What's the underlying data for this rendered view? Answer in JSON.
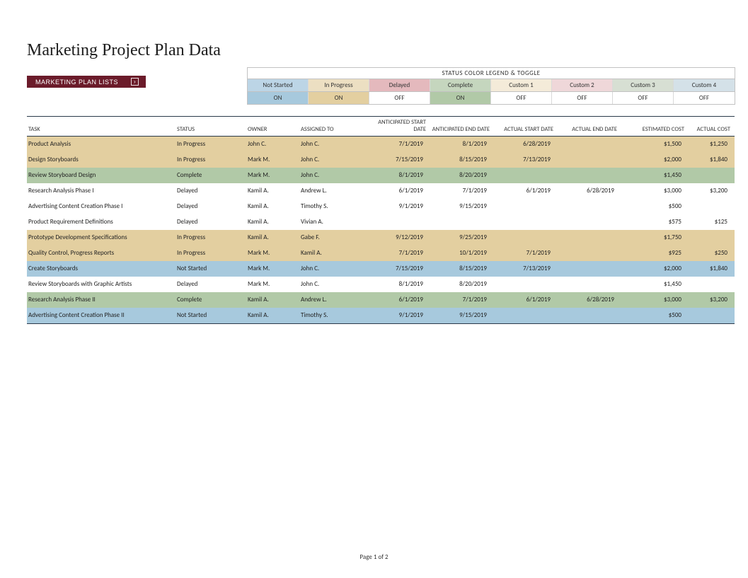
{
  "title": "Marketing Project Plan Data",
  "lists_button": "MARKETING PLAN LISTS",
  "legend_title": "STATUS COLOR LEGEND & TOGGLE",
  "legend": [
    {
      "label": "Not Started",
      "color": "#bcd5e6",
      "toggle": "ON",
      "toggle_bg": "#a7c9dd"
    },
    {
      "label": "In Progress",
      "color": "#ecdfc2",
      "toggle": "ON",
      "toggle_bg": "#e3cfa0"
    },
    {
      "label": "Delayed",
      "color": "#e4b9bd",
      "toggle": "OFF",
      "toggle_bg": "#ffffff"
    },
    {
      "label": "Complete",
      "color": "#c5d6be",
      "toggle": "ON",
      "toggle_bg": "#b1c9a7"
    },
    {
      "label": "Custom 1",
      "color": "#f4ebd9",
      "toggle": "OFF",
      "toggle_bg": "#ffffff"
    },
    {
      "label": "Custom 2",
      "color": "#efd7d9",
      "toggle": "OFF",
      "toggle_bg": "#ffffff"
    },
    {
      "label": "Custom 3",
      "color": "#d7dfd3",
      "toggle": "OFF",
      "toggle_bg": "#ffffff"
    },
    {
      "label": "Custom 4",
      "color": "#d4e1e8",
      "toggle": "OFF",
      "toggle_bg": "#ffffff"
    }
  ],
  "columns": [
    {
      "key": "task",
      "label": "TASK",
      "align": "left"
    },
    {
      "key": "status",
      "label": "STATUS",
      "align": "left"
    },
    {
      "key": "owner",
      "label": "OWNER",
      "align": "left"
    },
    {
      "key": "assigned",
      "label": "ASSIGNED TO",
      "align": "left"
    },
    {
      "key": "ant_start",
      "label": "ANTICIPATED START DATE",
      "align": "right"
    },
    {
      "key": "ant_end",
      "label": "ANTICIPATED END DATE",
      "align": "right"
    },
    {
      "key": "act_start",
      "label": "ACTUAL START DATE",
      "align": "right"
    },
    {
      "key": "act_end",
      "label": "ACTUAL END DATE",
      "align": "right"
    },
    {
      "key": "est_cost",
      "label": "ESTIMATED COST",
      "align": "right"
    },
    {
      "key": "act_cost",
      "label": "ACTUAL COST",
      "align": "right"
    }
  ],
  "status_colors": {
    "Not Started": "#a7c9dd",
    "In Progress": "#e3cfa0",
    "Delayed": "#ffffff",
    "Complete": "#b1c9a7"
  },
  "rows": [
    {
      "task": "Product Analysis",
      "status": "In Progress",
      "owner": "John C.",
      "assigned": "John C.",
      "ant_start": "7/1/2019",
      "ant_end": "8/1/2019",
      "act_start": "6/28/2019",
      "act_end": "",
      "est_cost": "$1,500",
      "act_cost": "$1,250"
    },
    {
      "task": "Design Storyboards",
      "status": "In Progress",
      "owner": "Mark M.",
      "assigned": "John C.",
      "ant_start": "7/15/2019",
      "ant_end": "8/15/2019",
      "act_start": "7/13/2019",
      "act_end": "",
      "est_cost": "$2,000",
      "act_cost": "$1,840"
    },
    {
      "task": "Review Storyboard Design",
      "status": "Complete",
      "owner": "Mark M.",
      "assigned": "John C.",
      "ant_start": "8/1/2019",
      "ant_end": "8/20/2019",
      "act_start": "",
      "act_end": "",
      "est_cost": "$1,450",
      "act_cost": ""
    },
    {
      "task": "Research Analysis Phase I",
      "status": "Delayed",
      "owner": "Kamil A.",
      "assigned": "Andrew L.",
      "ant_start": "6/1/2019",
      "ant_end": "7/1/2019",
      "act_start": "6/1/2019",
      "act_end": "6/28/2019",
      "est_cost": "$3,000",
      "act_cost": "$3,200"
    },
    {
      "task": "Advertising Content Creation Phase I",
      "status": "Delayed",
      "owner": "Kamil A.",
      "assigned": "Timothy S.",
      "ant_start": "9/1/2019",
      "ant_end": "9/15/2019",
      "act_start": "",
      "act_end": "",
      "est_cost": "$500",
      "act_cost": ""
    },
    {
      "task": "Product Requirement Definitions",
      "status": "Delayed",
      "owner": "Kamil A.",
      "assigned": "Vivian A.",
      "ant_start": "",
      "ant_end": "",
      "act_start": "",
      "act_end": "",
      "est_cost": "$575",
      "act_cost": "$125"
    },
    {
      "task": "Prototype Development Specifications",
      "status": "In Progress",
      "owner": "Kamil A.",
      "assigned": "Gabe F.",
      "ant_start": "9/12/2019",
      "ant_end": "9/25/2019",
      "act_start": "",
      "act_end": "",
      "est_cost": "$1,750",
      "act_cost": ""
    },
    {
      "task": "Quality Control, Progress Reports",
      "status": "In Progress",
      "owner": "Mark M.",
      "assigned": "Kamil A.",
      "ant_start": "7/1/2019",
      "ant_end": "10/1/2019",
      "act_start": "7/1/2019",
      "act_end": "",
      "est_cost": "$925",
      "act_cost": "$250"
    },
    {
      "task": "Create Storyboards",
      "status": "Not Started",
      "owner": "Mark M.",
      "assigned": "John C.",
      "ant_start": "7/15/2019",
      "ant_end": "8/15/2019",
      "act_start": "7/13/2019",
      "act_end": "",
      "est_cost": "$2,000",
      "act_cost": "$1,840"
    },
    {
      "task": "Review Storyboards with Graphic Artists",
      "status": "Delayed",
      "owner": "Mark M.",
      "assigned": "John C.",
      "ant_start": "8/1/2019",
      "ant_end": "8/20/2019",
      "act_start": "",
      "act_end": "",
      "est_cost": "$1,450",
      "act_cost": ""
    },
    {
      "task": "Research Analysis Phase II",
      "status": "Complete",
      "owner": "Kamil A.",
      "assigned": "Andrew L.",
      "ant_start": "6/1/2019",
      "ant_end": "7/1/2019",
      "act_start": "6/1/2019",
      "act_end": "6/28/2019",
      "est_cost": "$3,000",
      "act_cost": "$3,200"
    },
    {
      "task": "Advertising Content Creation Phase II",
      "status": "Not Started",
      "owner": "Kamil A.",
      "assigned": "Timothy S.",
      "ant_start": "9/1/2019",
      "ant_end": "9/15/2019",
      "act_start": "",
      "act_end": "",
      "est_cost": "$500",
      "act_cost": ""
    }
  ],
  "footer": "Page 1 of 2"
}
